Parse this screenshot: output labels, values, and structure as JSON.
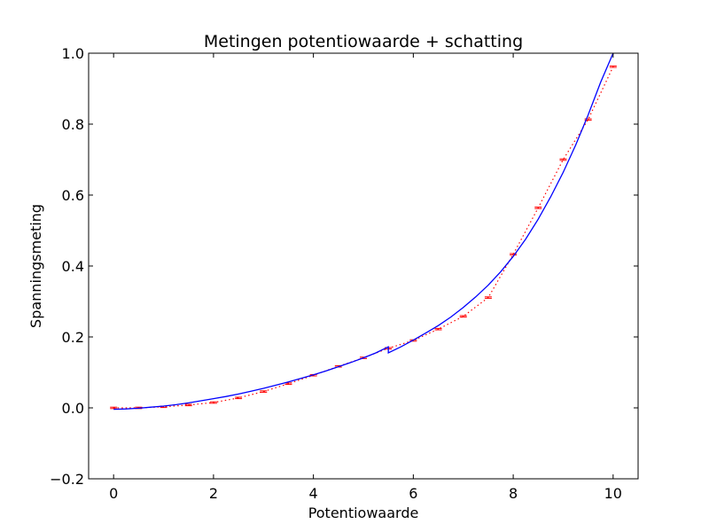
{
  "chart_data": {
    "type": "line",
    "title": "Metingen potentiowaarde + schatting",
    "xlabel": "Potentiowaarde",
    "ylabel": "Spanningsmeting",
    "xlim": [
      -0.5,
      10.5
    ],
    "ylim": [
      -0.2,
      1.0
    ],
    "xticks": [
      0,
      2,
      4,
      6,
      8,
      10
    ],
    "xtick_labels": [
      "0",
      "2",
      "4",
      "6",
      "8",
      "10"
    ],
    "yticks": [
      -0.2,
      0.0,
      0.2,
      0.4,
      0.6,
      0.8,
      1.0
    ],
    "ytick_labels": [
      "−0.2",
      "0.0",
      "0.2",
      "0.4",
      "0.6",
      "0.8",
      "1.0"
    ],
    "grid": false,
    "series": [
      {
        "style": "dotted-with-error-bars",
        "color": "#ff0000",
        "x": [
          0,
          0.5,
          1,
          1.5,
          2,
          2.5,
          3,
          3.5,
          4,
          4.5,
          5,
          5.5,
          6,
          6.5,
          7,
          7.5,
          8,
          8.5,
          9,
          9.5,
          10
        ],
        "y": [
          0.0,
          0.0,
          0.003,
          0.008,
          0.015,
          0.028,
          0.046,
          0.068,
          0.092,
          0.117,
          0.141,
          0.168,
          0.19,
          0.222,
          0.258,
          0.311,
          0.433,
          0.564,
          0.7,
          0.813,
          0.962
        ],
        "error": [
          0.002,
          0.002,
          0.002,
          0.002,
          0.002,
          0.002,
          0.002,
          0.002,
          0.002,
          0.002,
          0.002,
          0.002,
          0.002,
          0.002,
          0.002,
          0.002,
          0.002,
          0.002,
          0.002,
          0.002,
          0.002
        ]
      },
      {
        "style": "solid",
        "color": "#0000ff",
        "x": [
          0,
          0.25,
          0.5,
          0.75,
          1,
          1.25,
          1.5,
          1.75,
          2,
          2.25,
          2.5,
          2.75,
          3,
          3.25,
          3.5,
          3.75,
          4,
          4.25,
          4.5,
          4.75,
          5,
          5.25,
          5.5,
          5.5,
          5.75,
          6,
          6.25,
          6.5,
          6.75,
          7,
          7.25,
          7.5,
          7.75,
          8,
          8.25,
          8.5,
          8.75,
          9,
          9.25,
          9.5,
          9.75,
          10
        ],
        "y": [
          -0.004,
          -0.003,
          -0.001,
          0.002,
          0.005,
          0.009,
          0.014,
          0.02,
          0.026,
          0.032,
          0.039,
          0.047,
          0.055,
          0.064,
          0.073,
          0.083,
          0.093,
          0.104,
          0.116,
          0.128,
          0.141,
          0.155,
          0.172,
          0.155,
          0.172,
          0.191,
          0.211,
          0.232,
          0.256,
          0.283,
          0.313,
          0.346,
          0.384,
          0.427,
          0.476,
          0.532,
          0.595,
          0.664,
          0.741,
          0.826,
          0.918,
          1.0
        ]
      }
    ]
  }
}
